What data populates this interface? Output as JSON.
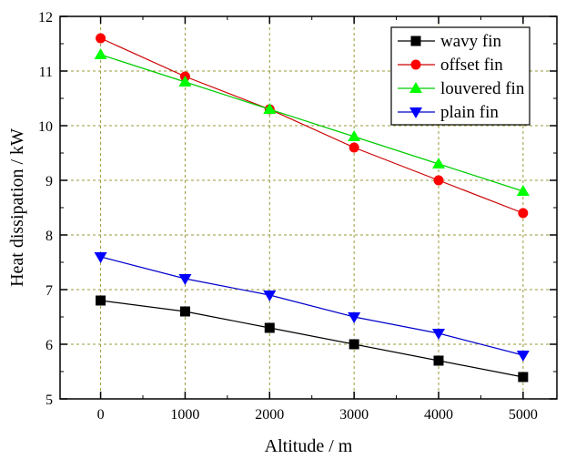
{
  "chart_data": {
    "type": "line",
    "title": "",
    "xlabel": "Altitude / m",
    "ylabel": "Heat dissipation / kW",
    "xlim": [
      -480,
      5400
    ],
    "ylim": [
      5,
      12
    ],
    "xticks": [
      0,
      1000,
      2000,
      3000,
      4000,
      5000
    ],
    "yticks": [
      5,
      6,
      7,
      8,
      9,
      10,
      11,
      12
    ],
    "grid": true,
    "grid_color": "#9a9a3a",
    "legend_position": "top-right",
    "x": [
      0,
      1000,
      2000,
      3000,
      4000,
      5000
    ],
    "series": [
      {
        "name": "wavy fin",
        "color": "#000000",
        "marker": "square",
        "values": [
          6.8,
          6.6,
          6.3,
          6.0,
          5.7,
          5.4
        ]
      },
      {
        "name": "offset fin",
        "color": "#ff0000",
        "line_color": "#cc0000",
        "marker": "circle",
        "values": [
          11.6,
          10.9,
          10.3,
          9.6,
          9.0,
          8.4
        ]
      },
      {
        "name": "louvered fin",
        "color": "#00ff00",
        "line_color": "#00cc00",
        "marker": "triangle-up",
        "values": [
          11.3,
          10.8,
          10.3,
          9.8,
          9.3,
          8.8
        ]
      },
      {
        "name": "plain fin",
        "color": "#0000ff",
        "line_color": "#0000cc",
        "marker": "triangle-down",
        "values": [
          7.6,
          7.2,
          6.9,
          6.5,
          6.2,
          5.8
        ]
      }
    ]
  }
}
